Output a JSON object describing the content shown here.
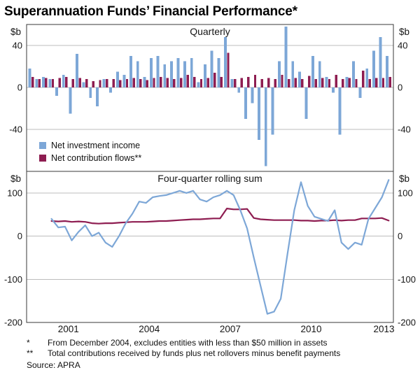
{
  "title": "Superannuation Funds’ Financial Performance*",
  "x_axis": {
    "labels": [
      "2001",
      "2004",
      "2007",
      "2010",
      "2013"
    ]
  },
  "chart_data": [
    {
      "type": "bar",
      "title": "Quarterly",
      "unit": "$b",
      "ylim": [
        -80,
        60
      ],
      "yticks": [
        40,
        0,
        -40
      ],
      "start_year": 2000,
      "start_quarter": 1,
      "frequency": "quarterly",
      "series": [
        {
          "name": "Net investment income",
          "color": "#7DA7D7",
          "values": [
            18,
            8,
            10,
            8,
            -8,
            12,
            -25,
            32,
            5,
            -10,
            -18,
            8,
            -5,
            15,
            12,
            30,
            25,
            10,
            28,
            30,
            22,
            25,
            28,
            25,
            28,
            5,
            22,
            35,
            28,
            48,
            8,
            -5,
            -30,
            -15,
            -50,
            -75,
            -45,
            25,
            58,
            25,
            15,
            -30,
            30,
            25,
            10,
            -5,
            -45,
            10,
            25,
            -10,
            18,
            35,
            48,
            30
          ]
        },
        {
          "name": "Net contribution flows**",
          "color": "#8E1D51",
          "values": [
            10,
            8,
            9,
            8,
            9,
            10,
            8,
            9,
            8,
            6,
            7,
            8,
            8,
            7,
            8,
            9,
            8,
            7,
            9,
            10,
            9,
            8,
            9,
            12,
            10,
            8,
            9,
            14,
            10,
            33,
            8,
            9,
            10,
            12,
            8,
            9,
            8,
            12,
            8,
            9,
            8,
            11,
            8,
            9,
            8,
            12,
            8,
            9,
            8,
            16,
            8,
            9,
            9,
            10
          ]
        }
      ]
    },
    {
      "type": "line",
      "title": "Four-quarter rolling sum",
      "unit": "$b",
      "ylim": [
        -200,
        150
      ],
      "yticks": [
        100,
        0,
        -100,
        -200
      ],
      "start_year": 2000,
      "start_quarter": 4,
      "frequency": "quarterly",
      "series": [
        {
          "name": "Net investment income (four-quarter rolling sum)",
          "color": "#7DA7D7",
          "values": [
            40,
            20,
            22,
            -10,
            10,
            25,
            0,
            8,
            -15,
            -25,
            0,
            30,
            52,
            80,
            77,
            90,
            93,
            95,
            100,
            105,
            100,
            105,
            85,
            80,
            90,
            95,
            105,
            95,
            60,
            18,
            -50,
            -115,
            -180,
            -175,
            -145,
            -40,
            60,
            125,
            70,
            45,
            40,
            35,
            60,
            -15,
            -30,
            -15,
            -20,
            40,
            65,
            90,
            130
          ]
        },
        {
          "name": "Net contribution flows (four-quarter rolling sum)",
          "color": "#8E1D51",
          "values": [
            35,
            34,
            35,
            33,
            34,
            33,
            30,
            29,
            30,
            30,
            31,
            32,
            33,
            33,
            33,
            34,
            35,
            35,
            36,
            37,
            38,
            39,
            39,
            40,
            41,
            41,
            64,
            62,
            62,
            63,
            42,
            39,
            38,
            37,
            37,
            37,
            37,
            36,
            36,
            35,
            36,
            36,
            37,
            36,
            37,
            37,
            41,
            41,
            41,
            42,
            36
          ]
        }
      ]
    }
  ],
  "footnotes": [
    {
      "marker": "*",
      "text": "From December 2004, excludes entities with less than $50 million in assets"
    },
    {
      "marker": "**",
      "text": "Total contributions received by funds plus net rollovers minus benefit payments"
    }
  ],
  "source": "Source: APRA"
}
